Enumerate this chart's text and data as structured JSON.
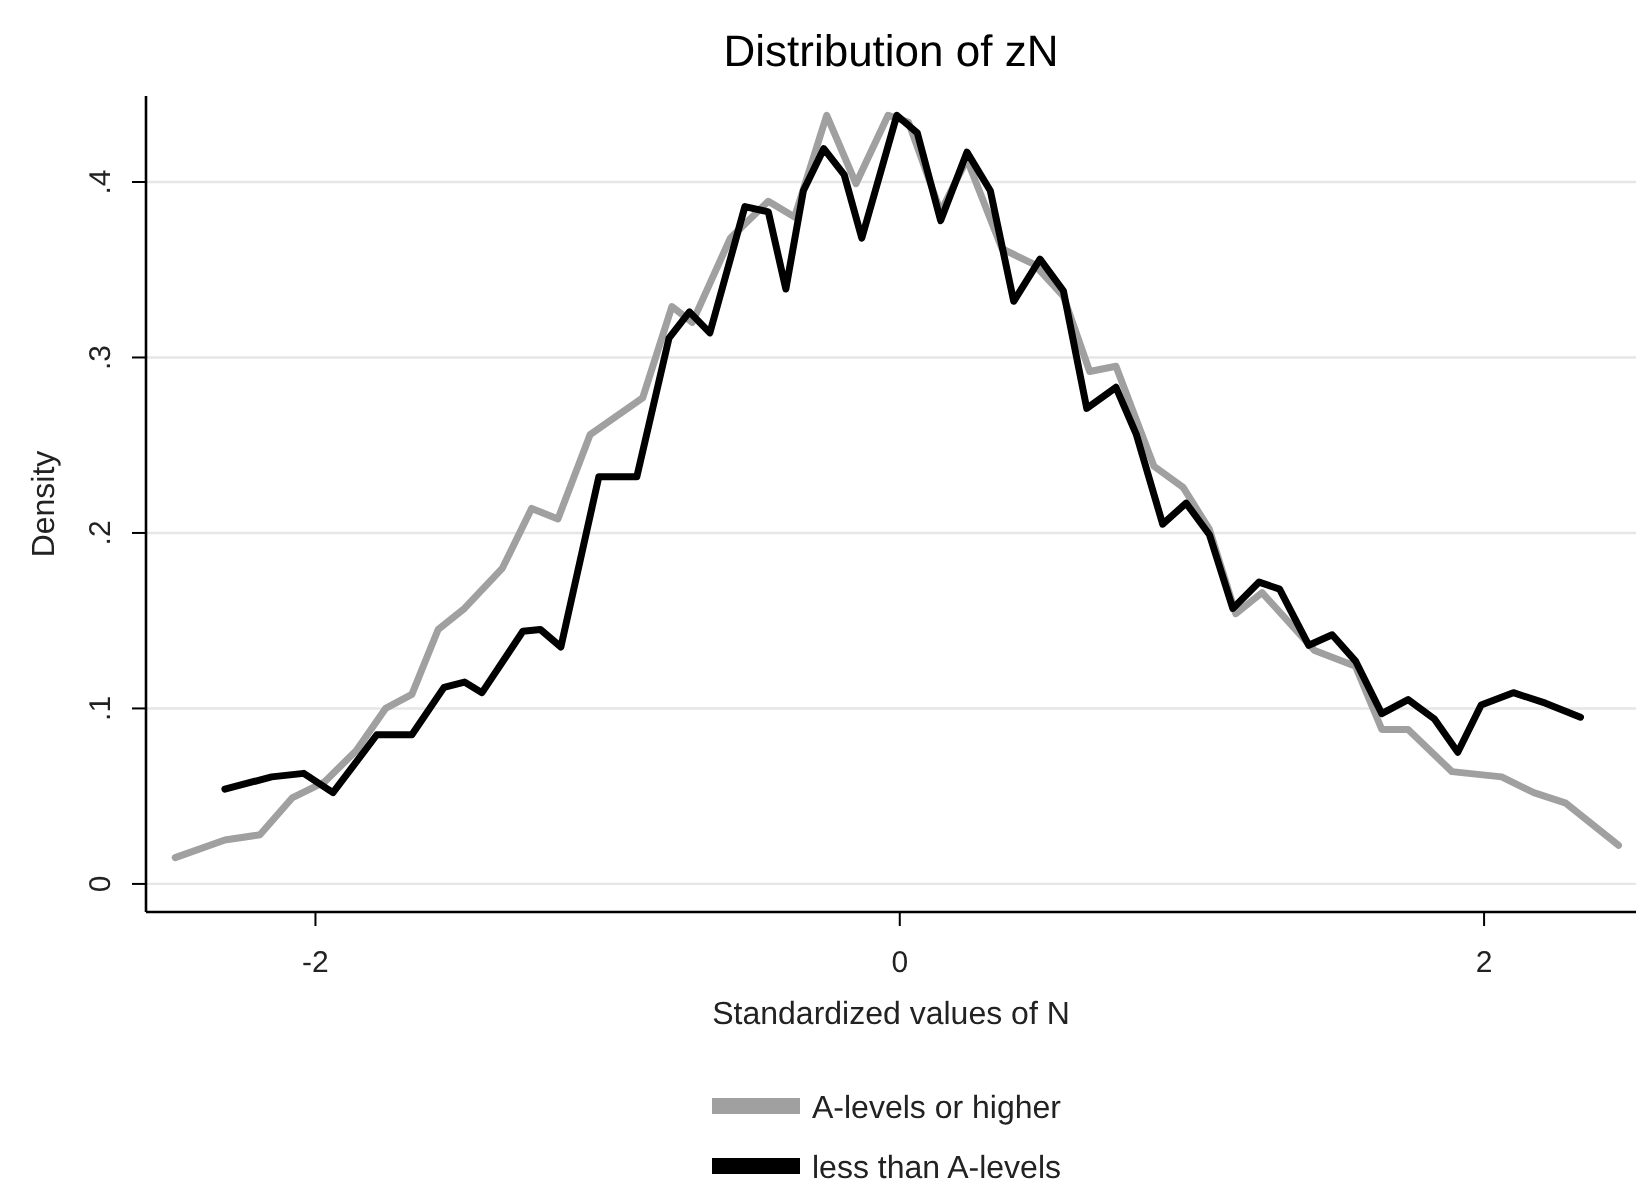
{
  "chart_data": {
    "type": "line",
    "title": "Distribution of zN",
    "xlabel": "Standardized values of N",
    "ylabel": "Density",
    "xlim": [
      -2.58,
      2.52
    ],
    "xticks": [
      -2,
      0,
      2
    ],
    "ylim": [
      -0.016,
      0.449
    ],
    "yticks": [
      {
        "value": 0,
        "label": "0"
      },
      {
        "value": 0.1,
        "label": ".1"
      },
      {
        "value": 0.2,
        "label": ".2"
      },
      {
        "value": 0.3,
        "label": ".3"
      },
      {
        "value": 0.4,
        "label": ".4"
      }
    ],
    "grid": "y",
    "legend": "bottom",
    "marker": "none",
    "line_style": "solid",
    "series": [
      {
        "name": "A-levels or higher",
        "color": "#a0a0a0",
        "x": [
          -2.48,
          -2.31,
          -2.19,
          -2.08,
          -1.97,
          -1.86,
          -1.76,
          -1.67,
          -1.58,
          -1.49,
          -1.36,
          -1.26,
          -1.17,
          -1.06,
          -0.88,
          -0.78,
          -0.71,
          -0.58,
          -0.45,
          -0.36,
          -0.25,
          -0.15,
          -0.04,
          0.03,
          0.14,
          0.23,
          0.35,
          0.46,
          0.56,
          0.65,
          0.74,
          0.87,
          0.97,
          1.06,
          1.15,
          1.24,
          1.42,
          1.56,
          1.65,
          1.74,
          1.89,
          2.06,
          2.17,
          2.28,
          2.46
        ],
        "values": [
          0.015,
          0.025,
          0.028,
          0.049,
          0.058,
          0.076,
          0.1,
          0.108,
          0.145,
          0.157,
          0.18,
          0.214,
          0.208,
          0.256,
          0.277,
          0.329,
          0.32,
          0.368,
          0.389,
          0.38,
          0.438,
          0.399,
          0.438,
          0.434,
          0.383,
          0.413,
          0.362,
          0.353,
          0.335,
          0.292,
          0.295,
          0.238,
          0.226,
          0.202,
          0.154,
          0.166,
          0.133,
          0.124,
          0.088,
          0.088,
          0.064,
          0.061,
          0.052,
          0.046,
          0.022
        ]
      },
      {
        "name": "less than A-levels",
        "color": "#000000",
        "x": [
          -2.31,
          -2.15,
          -2.04,
          -1.94,
          -1.79,
          -1.67,
          -1.56,
          -1.49,
          -1.43,
          -1.29,
          -1.23,
          -1.16,
          -1.03,
          -0.9,
          -0.79,
          -0.72,
          -0.65,
          -0.53,
          -0.45,
          -0.39,
          -0.33,
          -0.26,
          -0.19,
          -0.13,
          -0.01,
          0.06,
          0.14,
          0.23,
          0.31,
          0.39,
          0.48,
          0.56,
          0.64,
          0.74,
          0.81,
          0.9,
          0.98,
          1.06,
          1.14,
          1.23,
          1.3,
          1.4,
          1.48,
          1.56,
          1.65,
          1.74,
          1.83,
          1.91,
          1.99,
          2.1,
          2.21,
          2.33
        ],
        "values": [
          0.054,
          0.061,
          0.063,
          0.052,
          0.085,
          0.085,
          0.112,
          0.115,
          0.109,
          0.144,
          0.145,
          0.135,
          0.232,
          0.232,
          0.311,
          0.326,
          0.314,
          0.386,
          0.383,
          0.339,
          0.395,
          0.419,
          0.404,
          0.368,
          0.438,
          0.428,
          0.378,
          0.417,
          0.395,
          0.332,
          0.356,
          0.338,
          0.271,
          0.283,
          0.256,
          0.205,
          0.217,
          0.199,
          0.157,
          0.172,
          0.168,
          0.136,
          0.142,
          0.127,
          0.097,
          0.105,
          0.094,
          0.075,
          0.102,
          0.109,
          0.103,
          0.095
        ]
      }
    ]
  }
}
